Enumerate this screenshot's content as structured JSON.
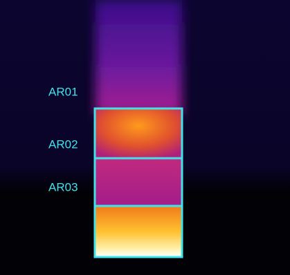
{
  "regions": [
    {
      "label": "AR01"
    },
    {
      "label": "AR02"
    },
    {
      "label": "AR03"
    }
  ]
}
